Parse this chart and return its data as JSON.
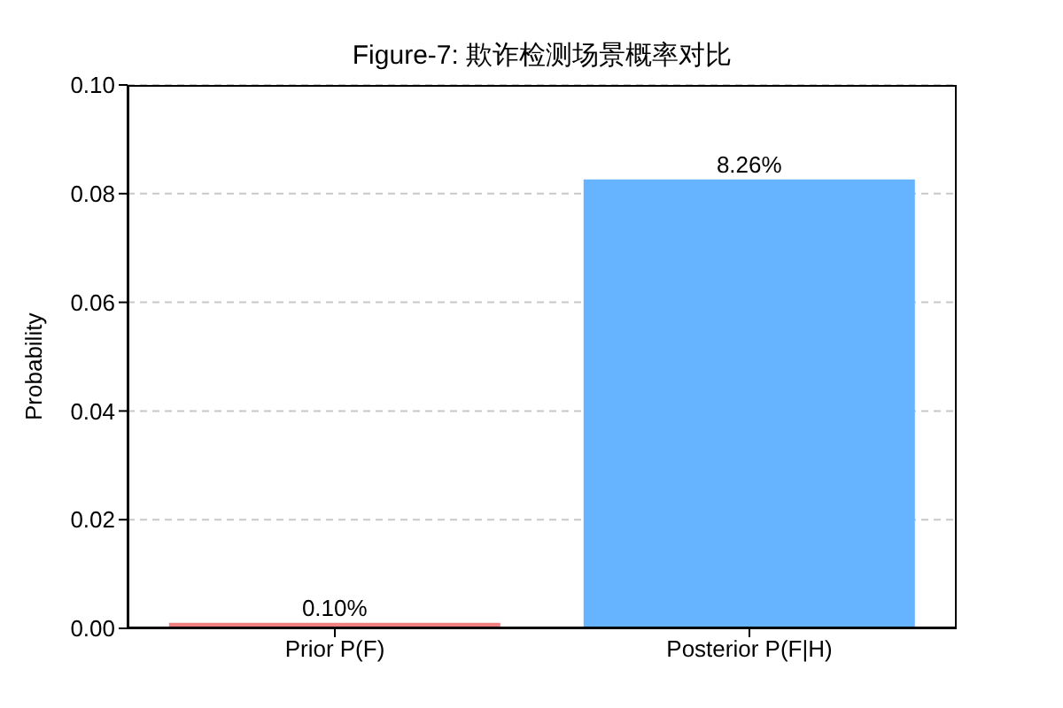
{
  "chart_data": {
    "type": "bar",
    "title": "Figure-7: 欺诈检测场景概率对比",
    "ylabel": "Probability",
    "categories": [
      "Prior P(F)",
      "Posterior P(F|H)"
    ],
    "values": [
      0.001,
      0.0826
    ],
    "colors": [
      "#f08080",
      "#66b3ff"
    ],
    "value_labels": [
      "0.10%",
      "8.26%"
    ],
    "ylim": [
      0,
      0.1
    ],
    "yticks": [
      {
        "value": 0,
        "label": "0.00"
      },
      {
        "value": 0.02,
        "label": "0.02"
      },
      {
        "value": 0.04,
        "label": "0.04"
      },
      {
        "value": 0.06,
        "label": "0.06"
      },
      {
        "value": 0.08,
        "label": "0.08"
      },
      {
        "value": 0.1,
        "label": "0.10"
      }
    ],
    "grid": "y"
  }
}
